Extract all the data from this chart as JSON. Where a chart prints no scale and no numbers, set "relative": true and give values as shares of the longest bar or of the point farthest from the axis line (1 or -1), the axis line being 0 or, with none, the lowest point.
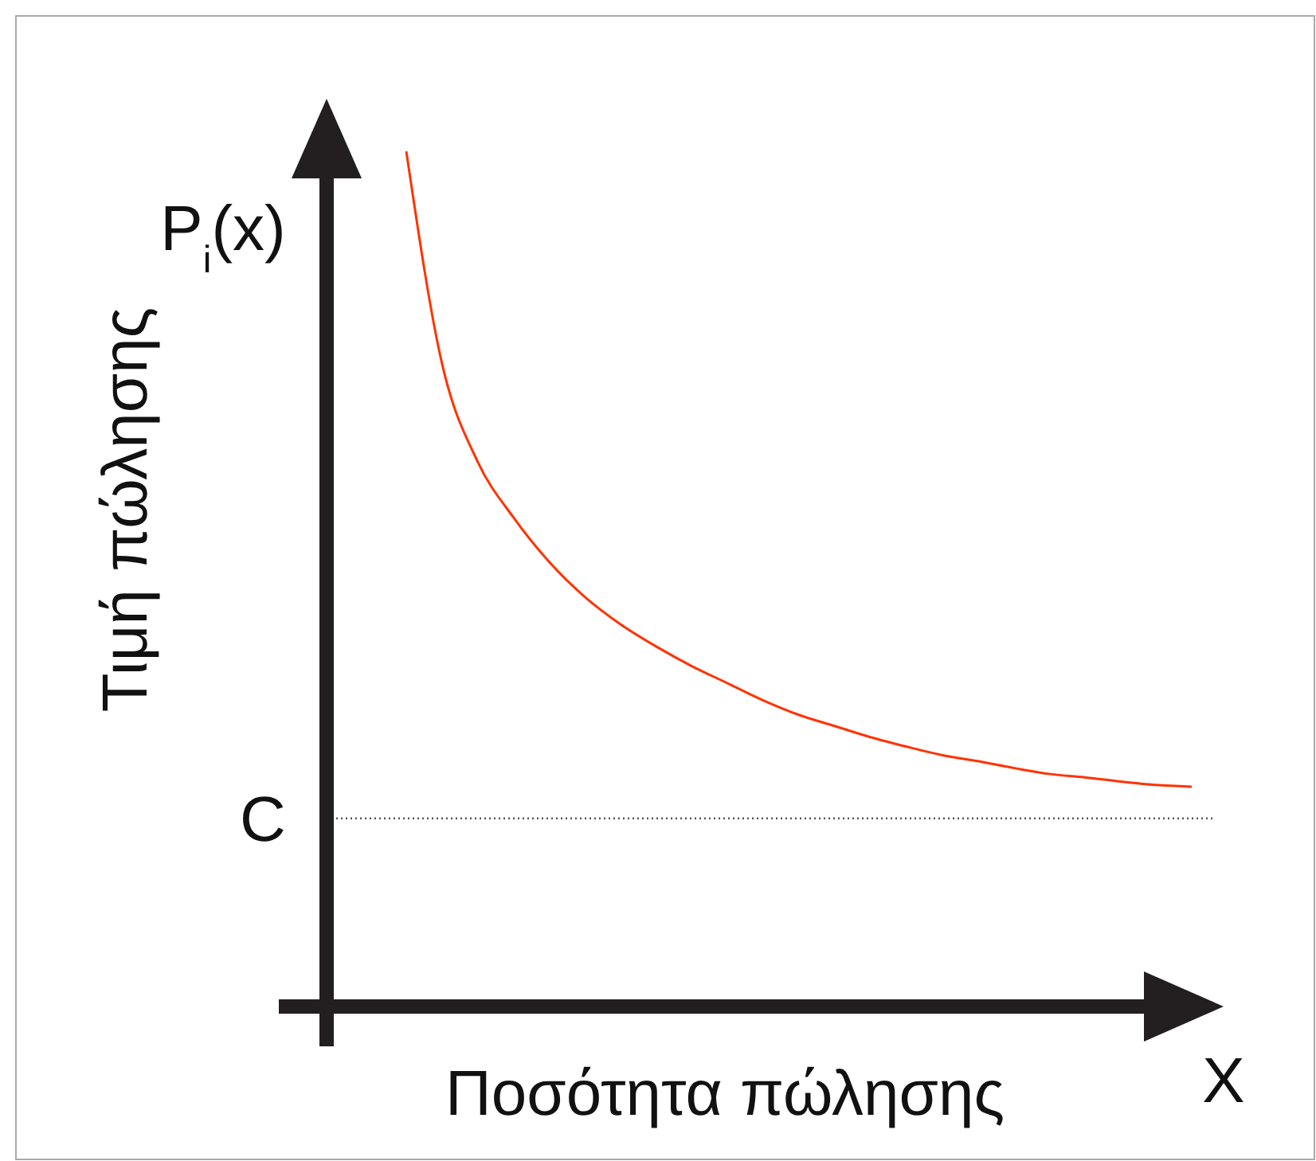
{
  "chart_data": {
    "type": "line",
    "relative": true,
    "xlabel": "Ποσότητα πώλησης",
    "ylabel": "Τιμή πώλησης",
    "annotations": [
      "P$_{i}$(x)",
      "X"
    ],
    "categories": [
      null,
      null,
      null,
      null,
      null,
      null,
      null,
      null,
      null,
      null,
      null,
      null,
      null,
      null,
      null,
      null,
      null,
      null,
      null,
      null,
      null,
      null,
      null
    ],
    "series": [
      {
        "color": "#ff3300",
        "values": [
          1.0,
          0.752,
          0.637,
          0.572,
          0.52,
          0.479,
          0.447,
          0.421,
          0.398,
          0.378,
          0.358,
          0.341,
          0.328,
          0.315,
          0.304,
          0.294,
          0.287,
          0.279,
          0.272,
          0.268,
          0.263,
          0.259,
          0.257
        ]
      }
    ],
    "ref_lines": [
      {
        "axis": "y",
        "value": 0.22,
        "label": "C",
        "color": "#555555",
        "line_style": "dotted"
      }
    ],
    "marker": "none",
    "line_style": "solid"
  }
}
